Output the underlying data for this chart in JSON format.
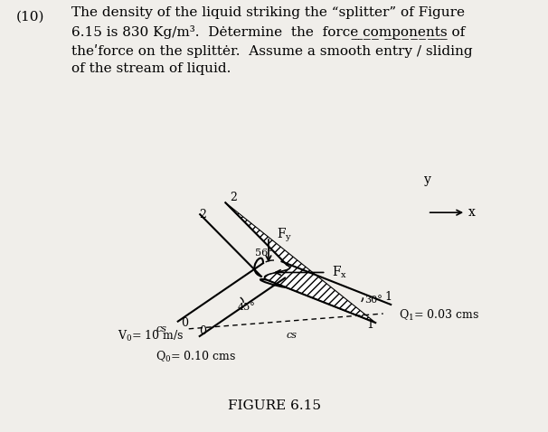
{
  "bg_color": "#f0eeea",
  "problem_number": "(10)",
  "problem_text_lines": [
    "The density of the liquid striking the “splitter” of Figure",
    "6.15 is 830 Kg/m³.  Dėtermine  the  force  components of",
    "the force on the splittėr.  Assume  a smooth entry / sliding",
    "of the stream of liquid."
  ],
  "figure_title": "FIGURE 6.15",
  "labels": {
    "2_upper": "2",
    "56deg": "56°",
    "Fy": "Fy",
    "2_left": "2",
    "cs_left": "cs",
    "Fx": "Fₓ",
    "0_center": "0",
    "1_right_upper": "1",
    "30deg": "30°",
    "Q1": "Q₁= 0.03 cms",
    "1_right_lower": "1",
    "0_lower": "0",
    "cs_lower": "cs",
    "45deg": "45°",
    "V0": "V₀= 10 m/s",
    "Q0": "Q₀= 0.10 cms",
    "y_axis": "y",
    "x_axis": "x"
  }
}
